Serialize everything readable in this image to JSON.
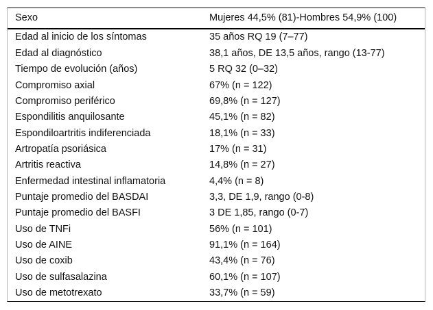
{
  "table": {
    "header": {
      "label": "Sexo",
      "value": "Mujeres 44,5% (81)-Hombres 54,9% (100)"
    },
    "rows": [
      {
        "label": "Edad al inicio de los síntomas",
        "value": "35 años RQ 19 (7–77)"
      },
      {
        "label": "Edad al diagnóstico",
        "value": "38,1 años, DE 13,5 años, rango (13-77)"
      },
      {
        "label": "Tiempo de evolución (años)",
        "value": "5 RQ 32 (0–32)"
      },
      {
        "label": "Compromiso axial",
        "value": "67% (n = 122)"
      },
      {
        "label": "Compromiso periférico",
        "value": "69,8% (n = 127)"
      },
      {
        "label": "Espondilitis anquilosante",
        "value": "45,1% (n = 82)"
      },
      {
        "label": "Espondiloartritis indiferenciada",
        "value": "18,1% (n = 33)"
      },
      {
        "label": "Artropatía psoriásica",
        "value": "17% (n = 31)"
      },
      {
        "label": "Artritis reactiva",
        "value": "14,8% (n = 27)"
      },
      {
        "label": "Enfermedad intestinal inflamatoria",
        "value": "4,4% (n = 8)"
      },
      {
        "label": "Puntaje promedio del BASDAI",
        "value": "3,3, DE 1,9, rango (0-8)"
      },
      {
        "label": "Puntaje promedio del BASFI",
        "value": "3 DE 1,85, rango (0-7)"
      },
      {
        "label": "Uso de TNFi",
        "value": "56% (n = 101)"
      },
      {
        "label": "Uso de AINE",
        "value": "91,1% (n = 164)"
      },
      {
        "label": "Uso de coxib",
        "value": "43,4% (n = 76)"
      },
      {
        "label": "Uso de sulfasalazina",
        "value": "60,1% (n = 107)"
      },
      {
        "label": "Uso de metotrexato",
        "value": "33,7% (n = 59)"
      }
    ],
    "colors": {
      "text": "#111111",
      "rule": "#000000",
      "side_rule": "#b3b3b3",
      "background": "#ffffff"
    }
  }
}
